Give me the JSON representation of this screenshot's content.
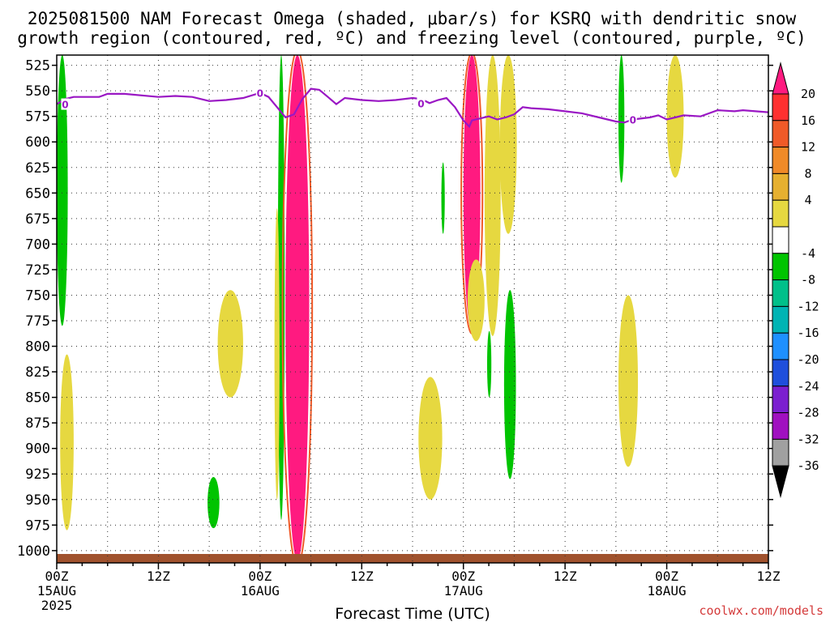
{
  "title": {
    "line1": "2025081500 NAM Forecast Omega (shaded, μbar/s) for KSRQ with dendritic snow",
    "line2": "growth region (contoured, red, ºC) and freezing level (contoured, purple, ºC)"
  },
  "credit": "coolwx.com/models",
  "chart_data": {
    "type": "heatmap",
    "title": "2025081500 NAM Forecast Omega (shaded, μbar/s) for KSRQ with dendritic snow growth region (contoured, red, ºC) and freezing level (contoured, purple, ºC)",
    "xlabel": "Forecast Time (UTC)",
    "ylabel": "",
    "x_range_hours": [
      0,
      84
    ],
    "y_range_hPa": [
      1012,
      515
    ],
    "y_ticks": [
      525,
      550,
      575,
      600,
      625,
      650,
      675,
      700,
      725,
      750,
      775,
      800,
      825,
      850,
      875,
      900,
      925,
      950,
      975,
      1000
    ],
    "x_ticks": [
      {
        "hour": 0,
        "label": "00Z",
        "date": "15AUG",
        "year": "2025"
      },
      {
        "hour": 12,
        "label": "12Z",
        "date": "",
        "year": ""
      },
      {
        "hour": 24,
        "label": "00Z",
        "date": "16AUG",
        "year": ""
      },
      {
        "hour": 36,
        "label": "12Z",
        "date": "",
        "year": ""
      },
      {
        "hour": 48,
        "label": "00Z",
        "date": "17AUG",
        "year": ""
      },
      {
        "hour": 60,
        "label": "12Z",
        "date": "",
        "year": ""
      },
      {
        "hour": 72,
        "label": "00Z",
        "date": "18AUG",
        "year": ""
      },
      {
        "hour": 84,
        "label": "12Z",
        "date": "",
        "year": ""
      }
    ],
    "grid": true,
    "colorbar": {
      "labels": [
        "20",
        "16",
        "12",
        "8",
        "4",
        "-4",
        "-8",
        "-12",
        "-16",
        "-20",
        "-24",
        "-28",
        "-32",
        "-36"
      ],
      "colors": [
        "#ff1a80",
        "#ff3030",
        "#f05a28",
        "#f08a28",
        "#e6b030",
        "#e6d840",
        "#ffffff",
        "#00c400",
        "#00c08a",
        "#00b4b4",
        "#1e90ff",
        "#1f4fdc",
        "#7b1fd0",
        "#a010c0",
        "#a0a0a0",
        "#000000"
      ]
    },
    "freezing_level": {
      "label": "0",
      "color": "#9a17c4",
      "points": [
        [
          0,
          563
        ],
        [
          1,
          558
        ],
        [
          2,
          556
        ],
        [
          5,
          556
        ],
        [
          6,
          553
        ],
        [
          8,
          553
        ],
        [
          12,
          556
        ],
        [
          14,
          555
        ],
        [
          16,
          556
        ],
        [
          18,
          560
        ],
        [
          20,
          559
        ],
        [
          22,
          557
        ],
        [
          24,
          552
        ],
        [
          25,
          556
        ],
        [
          26,
          566
        ],
        [
          27,
          576
        ],
        [
          28,
          573
        ],
        [
          29,
          558
        ],
        [
          30,
          548
        ],
        [
          31,
          549
        ],
        [
          32,
          556
        ],
        [
          33,
          563
        ],
        [
          34,
          557
        ],
        [
          36,
          559
        ],
        [
          38,
          560
        ],
        [
          40,
          559
        ],
        [
          42,
          557
        ],
        [
          43,
          558
        ],
        [
          44,
          562
        ],
        [
          45,
          559
        ],
        [
          46,
          557
        ],
        [
          47,
          566
        ],
        [
          48,
          579
        ],
        [
          48.7,
          585
        ],
        [
          49,
          579
        ],
        [
          50,
          577
        ],
        [
          51,
          575
        ],
        [
          52,
          578
        ],
        [
          53,
          576
        ],
        [
          54,
          573
        ],
        [
          55,
          566
        ],
        [
          56,
          567
        ],
        [
          58,
          568
        ],
        [
          60,
          570
        ],
        [
          62,
          572
        ],
        [
          64,
          576
        ],
        [
          66,
          580
        ],
        [
          67,
          581
        ],
        [
          68,
          578
        ],
        [
          70,
          576
        ],
        [
          71,
          574
        ],
        [
          72,
          578
        ],
        [
          73,
          576
        ],
        [
          74,
          574
        ],
        [
          76,
          575
        ],
        [
          78,
          569
        ],
        [
          80,
          570
        ],
        [
          81,
          569
        ],
        [
          84,
          571
        ]
      ]
    },
    "omega_regions": [
      {
        "level": "green",
        "hour_range": [
          0,
          1.3
        ],
        "p_range": [
          515,
          780
        ]
      },
      {
        "level": "yellow",
        "hour_range": [
          0.4,
          2
        ],
        "p_range": [
          808,
          980
        ]
      },
      {
        "level": "yellow",
        "hour_range": [
          19,
          22
        ],
        "p_range": [
          745,
          850
        ]
      },
      {
        "level": "green",
        "hour_range": [
          17.8,
          19.2
        ],
        "p_range": [
          928,
          978
        ]
      },
      {
        "level": "green",
        "hour_range": [
          26.1,
          26.9
        ],
        "p_range": [
          515,
          970
        ]
      },
      {
        "level": "max",
        "hour_range": [
          27,
          29.8
        ],
        "p_range": [
          515,
          1010
        ]
      },
      {
        "level": "yellow",
        "hour_range": [
          25.7,
          26.3
        ],
        "p_range": [
          665,
          950
        ]
      },
      {
        "level": "yellow",
        "hour_range": [
          42.7,
          45.5
        ],
        "p_range": [
          830,
          950
        ]
      },
      {
        "level": "green",
        "hour_range": [
          45.4,
          45.8
        ],
        "p_range": [
          620,
          690
        ]
      },
      {
        "level": "max",
        "hour_range": [
          48,
          50
        ],
        "p_range": [
          515,
          785
        ]
      },
      {
        "level": "yellow",
        "hour_range": [
          48.5,
          50.5
        ],
        "p_range": [
          715,
          795
        ]
      },
      {
        "level": "yellow",
        "hour_range": [
          50.5,
          52.4
        ],
        "p_range": [
          515,
          790
        ]
      },
      {
        "level": "yellow",
        "hour_range": [
          52.3,
          54.3
        ],
        "p_range": [
          515,
          690
        ]
      },
      {
        "level": "green",
        "hour_range": [
          50.8,
          51.3
        ],
        "p_range": [
          785,
          850
        ]
      },
      {
        "level": "green",
        "hour_range": [
          52.8,
          54.2
        ],
        "p_range": [
          745,
          930
        ]
      },
      {
        "level": "yellow",
        "hour_range": [
          66.3,
          68.6
        ],
        "p_range": [
          750,
          918
        ]
      },
      {
        "level": "green",
        "hour_range": [
          66.3,
          67
        ],
        "p_range": [
          515,
          640
        ]
      },
      {
        "level": "yellow",
        "hour_range": [
          72,
          74
        ],
        "p_range": [
          515,
          635
        ]
      }
    ]
  }
}
